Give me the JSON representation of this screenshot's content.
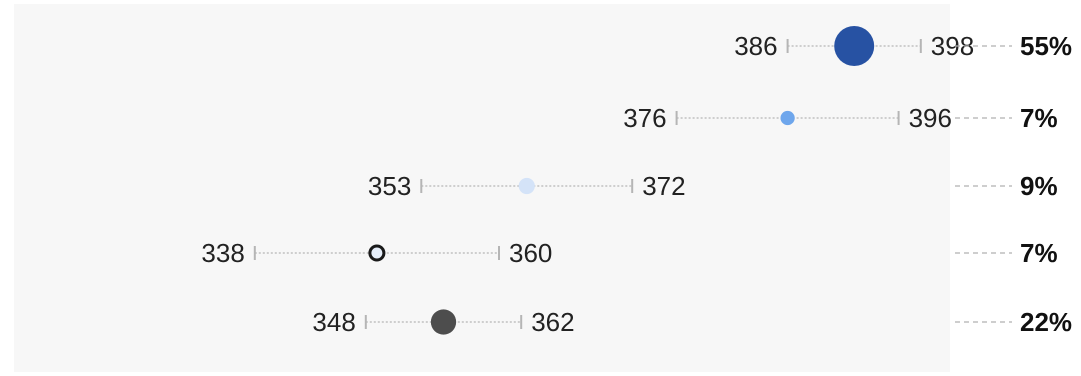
{
  "chart_data": {
    "type": "range-dot",
    "rows": [
      {
        "low": 386,
        "high": 398,
        "low_label": "386",
        "high_label": "398",
        "share": 55,
        "share_label": "55%",
        "color": "#2752a3",
        "outline": ""
      },
      {
        "low": 376,
        "high": 396,
        "low_label": "376",
        "high_label": "396",
        "share": 7,
        "share_label": "7%",
        "color": "#6ea6ec",
        "outline": ""
      },
      {
        "low": 353,
        "high": 372,
        "low_label": "353",
        "high_label": "372",
        "share": 9,
        "share_label": "9%",
        "color": "#d4e3f8",
        "outline": ""
      },
      {
        "low": 338,
        "high": 360,
        "low_label": "338",
        "high_label": "360",
        "share": 7,
        "share_label": "7%",
        "color": "#e6eef9",
        "outline": "#1a1a1a"
      },
      {
        "low": 348,
        "high": 362,
        "low_label": "348",
        "high_label": "362",
        "share": 22,
        "share_label": "22%",
        "color": "#4d4d4d",
        "outline": ""
      }
    ],
    "xlim": [
      313,
      415
    ],
    "colors": {
      "panel": "#f7f7f7",
      "whisker": "#b5b5b5",
      "leader": "#b0b0b0"
    }
  }
}
